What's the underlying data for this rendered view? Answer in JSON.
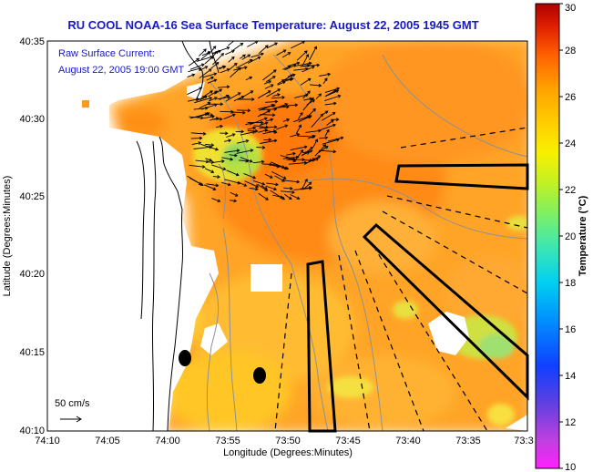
{
  "title": "RU COOL  NOAA-16  Sea Surface Temperature:  August 22, 2005 1945 GMT",
  "legend": {
    "line1": "Raw Surface Current:",
    "line2": "August 22, 2005 19:00 GMT",
    "scale_label": "50 cm/s"
  },
  "axes": {
    "xlabel": "Longitude (Degrees:Minutes)",
    "ylabel": "Latitude (Degrees:Minutes)",
    "xticks": [
      "74:10",
      "74:05",
      "74:00",
      "73:55",
      "73:50",
      "73:45",
      "73:40",
      "73:35",
      "73:3"
    ],
    "yticks": [
      "40:35",
      "40:30",
      "40:25",
      "40:20",
      "40:15",
      "40:10"
    ]
  },
  "colorbar": {
    "label": "Temperature (°C)",
    "ticks": [
      "30",
      "28",
      "26",
      "24",
      "22",
      "20",
      "18",
      "16",
      "14",
      "12",
      "10"
    ],
    "range": [
      10,
      30
    ]
  }
}
